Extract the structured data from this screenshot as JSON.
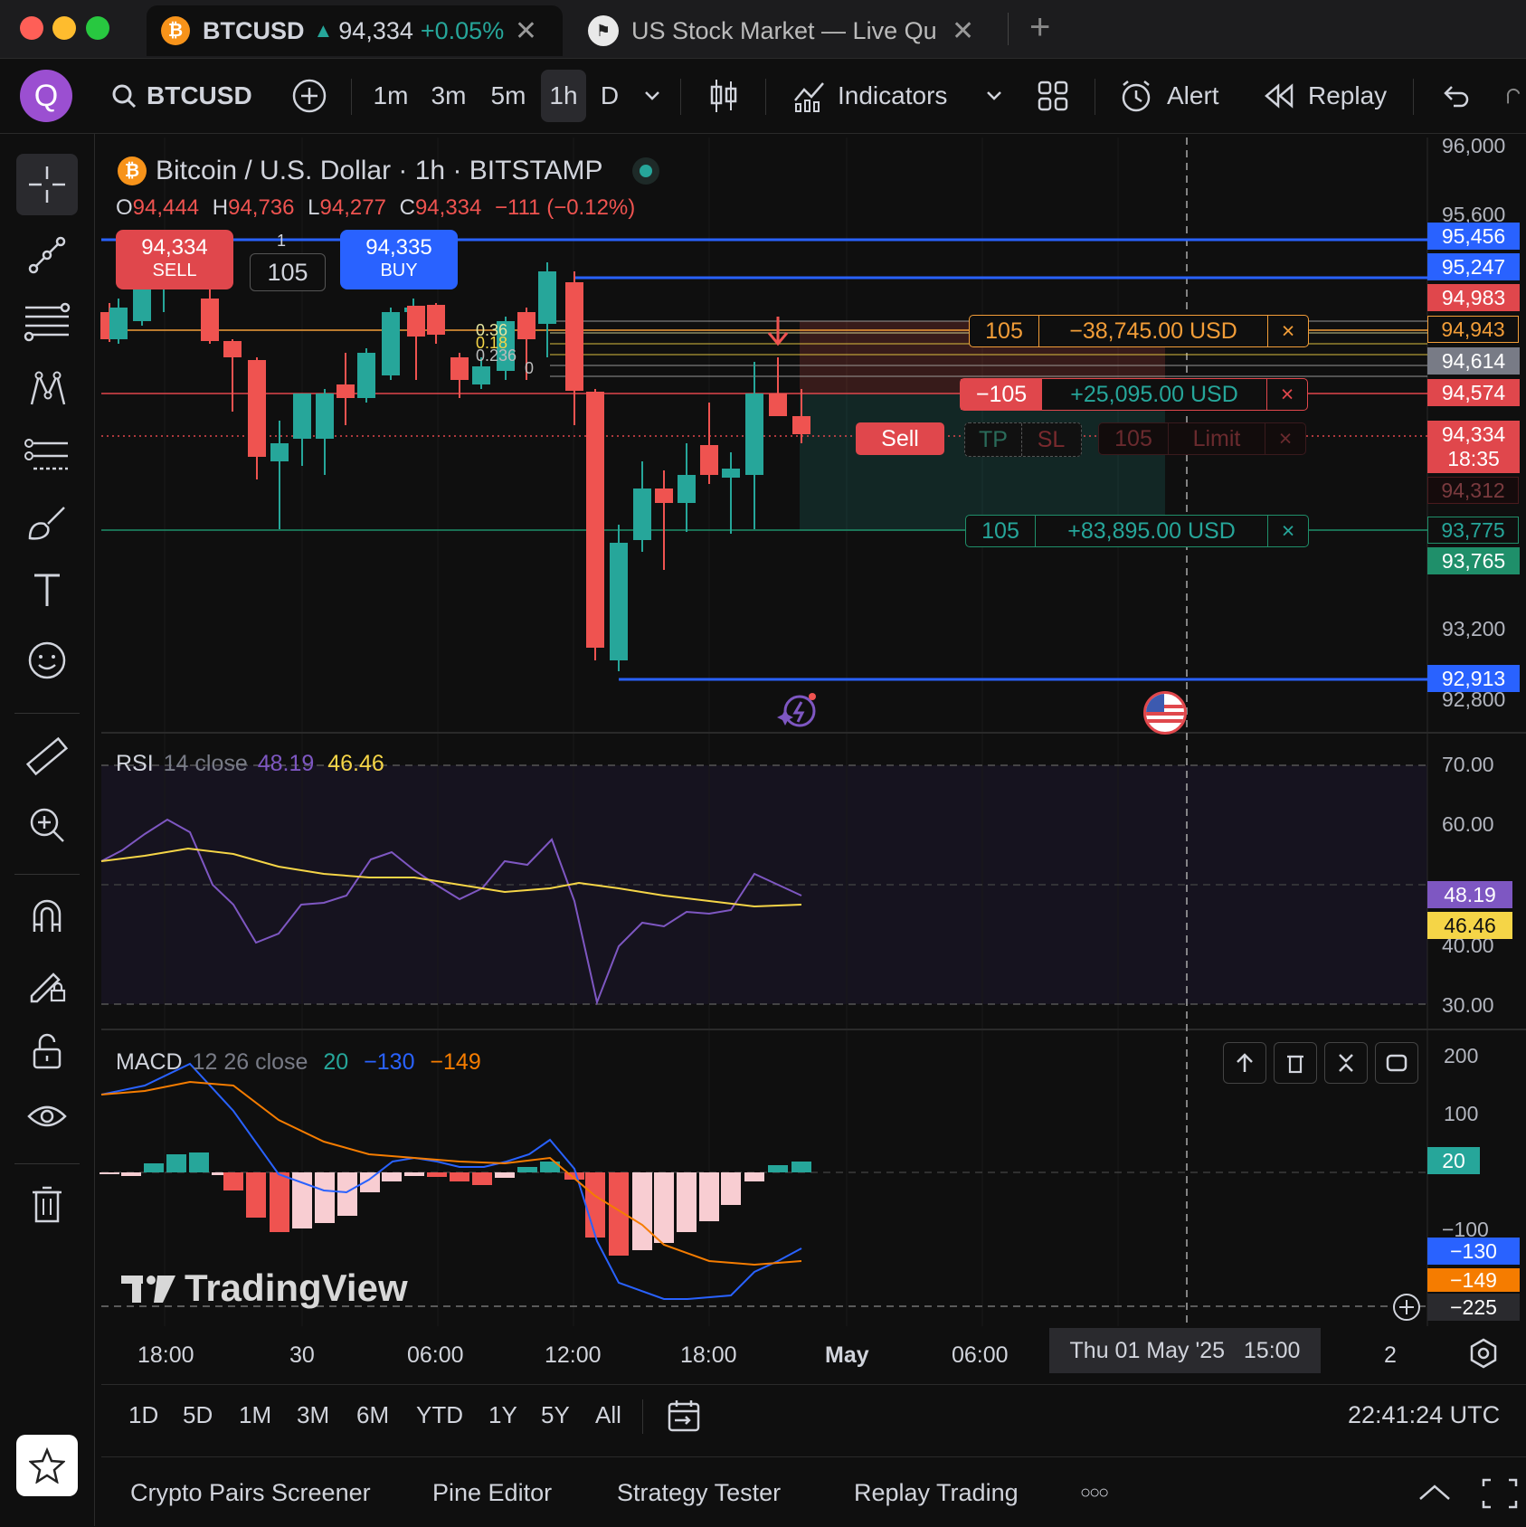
{
  "tabs": [
    {
      "symbol": "BTCUSD",
      "arrow": "▲",
      "price": "94,334",
      "change": "+0.05%"
    },
    {
      "title": "US Stock Market — Live Qu"
    }
  ],
  "toolbar": {
    "logo": "Q",
    "symbol": "BTCUSD",
    "intervals": [
      "1m",
      "3m",
      "5m",
      "1h",
      "D"
    ],
    "active_interval": "1h",
    "indicators": "Indicators",
    "alert": "Alert",
    "replay": "Replay"
  },
  "legend": {
    "title": "Bitcoin / U.S. Dollar · 1h · BITSTAMP",
    "o_label": "O",
    "o": "94,444",
    "h_label": "H",
    "h": "94,736",
    "l_label": "L",
    "l": "94,277",
    "c_label": "C",
    "c": "94,334",
    "chg": "−111 (−0.12%)"
  },
  "trade": {
    "sell_price": "94,334",
    "sell_label": "SELL",
    "qty": "105",
    "qty_top": "1",
    "buy_price": "94,335",
    "buy_label": "BUY"
  },
  "orders": {
    "top_qty": "105",
    "top_pnl": "−38,745.00 USD",
    "pos_qty": "−105",
    "pos_pnl": "+25,095.00 USD",
    "sell_btn": "Sell",
    "tp": "TP",
    "sl": "SL",
    "limit_qty": "105",
    "limit": "Limit",
    "bottom_qty": "105",
    "bottom_pnl": "+83,895.00 USD",
    "close": "×"
  },
  "fib_labels": [
    "0.36",
    "0.18",
    "0.236",
    "0"
  ],
  "price_axis": {
    "ticks": [
      "96,000",
      "95,600",
      "93,200",
      "92,800"
    ],
    "tags": [
      {
        "value": "95,456",
        "color": "#2962ff"
      },
      {
        "value": "95,247",
        "color": "#2962ff"
      },
      {
        "value": "94,983",
        "color": "#e0474c"
      },
      {
        "value": "94,943",
        "color": "#f29d38"
      },
      {
        "value": "94,614",
        "color": "#787b86"
      },
      {
        "value": "94,574",
        "color": "#e0474c"
      },
      {
        "value": "94,334",
        "color": "#e0474c",
        "sub": "18:35"
      },
      {
        "value": "94,312",
        "color": "#4a1a1d"
      },
      {
        "value": "93,775",
        "color": "#1f8f6a"
      },
      {
        "value": "93,765",
        "color": "#1f8f6a"
      },
      {
        "value": "92,913",
        "color": "#2962ff"
      }
    ]
  },
  "rsi": {
    "label": "RSI",
    "params": "14 close",
    "v1": "48.19",
    "v2": "46.46",
    "ticks": [
      "70.00",
      "60.00",
      "40.00",
      "30.00"
    ]
  },
  "macd": {
    "label": "MACD",
    "params": "12 26 close",
    "v1": "20",
    "v2": "−130",
    "v3": "−149",
    "ticks": [
      "200",
      "100",
      "−100"
    ],
    "tag_hist": "20",
    "tag_macd": "−130",
    "tag_signal": "−149",
    "tag_cross": "−225"
  },
  "watermark": "TradingView",
  "time_axis": {
    "labels": [
      "18:00",
      "30",
      "06:00",
      "12:00",
      "18:00",
      "May",
      "06:00",
      "2"
    ],
    "crosshair": "Thu 01 May '25   15:00"
  },
  "ranges": [
    "1D",
    "5D",
    "1M",
    "3M",
    "6M",
    "YTD",
    "1Y",
    "5Y",
    "All"
  ],
  "clock": "22:41:24 UTC",
  "panels": [
    "Crypto Pairs Screener",
    "Pine Editor",
    "Strategy Tester",
    "Replay Trading"
  ],
  "more": "○○○",
  "colors": {
    "up": "#26a69a",
    "down": "#ef5350",
    "blue": "#2962ff",
    "orange": "#f29d38",
    "rsi": "#7e57c2",
    "rsi_ma": "#f5d547"
  }
}
